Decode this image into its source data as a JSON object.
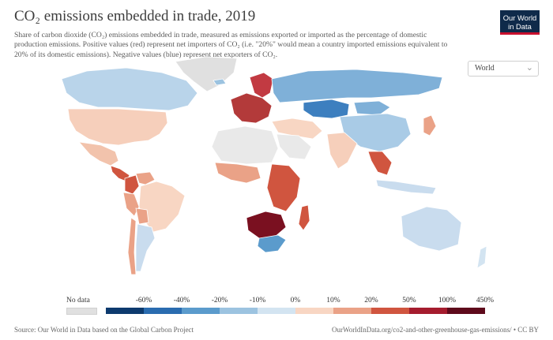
{
  "header": {
    "title": "CO₂ emissions embedded in trade, 2019",
    "subtitle": "Share of carbon dioxide (CO₂) emissions embedded in trade, measured as emissions exported or imported as the percentage of domestic production emissions. Positive values (red) represent net importers of CO₂ (i.e. \"20%\" would mean a country imported emissions equivalent to 20% of its domestic emissions). Negative values (blue) represent net exporters of CO₂.",
    "logo_line1": "Our World",
    "logo_line2": "in Data"
  },
  "region_selector": {
    "value": "World",
    "icon": "chevron-down-icon"
  },
  "legend": {
    "no_data_label": "No data",
    "no_data_color": "#e0e0e0",
    "ticks": [
      "-60%",
      "-40%",
      "-20%",
      "-10%",
      "0%",
      "10%",
      "20%",
      "50%",
      "100%",
      "450%"
    ],
    "colors": [
      "#0d3a6e",
      "#2a6cb0",
      "#5b9bcc",
      "#9cc3e0",
      "#d3e4f1",
      "#f8d6c3",
      "#eaa287",
      "#d0553f",
      "#a51c2e",
      "#5e0a1b"
    ]
  },
  "regions": [
    {
      "name": "Canada",
      "color": "#b9d4ea"
    },
    {
      "name": "United States",
      "color": "#f6cfbb"
    },
    {
      "name": "Mexico",
      "color": "#f2c3ac"
    },
    {
      "name": "Central America",
      "color": "#d0553f"
    },
    {
      "name": "Colombia",
      "color": "#d0553f"
    },
    {
      "name": "Venezuela",
      "color": "#eaa287"
    },
    {
      "name": "Brazil",
      "color": "#f8d6c3"
    },
    {
      "name": "Peru",
      "color": "#eaa287"
    },
    {
      "name": "Bolivia",
      "color": "#eaa287"
    },
    {
      "name": "Argentina",
      "color": "#c9dcee"
    },
    {
      "name": "Chile",
      "color": "#eaa287"
    },
    {
      "name": "Greenland",
      "color": "#e0e0e0"
    },
    {
      "name": "Iceland",
      "color": "#9cc3e0"
    },
    {
      "name": "Scandinavia",
      "color": "#c23a42"
    },
    {
      "name": "Western Europe",
      "color": "#b33a3a"
    },
    {
      "name": "Russia",
      "color": "#7fb0d8"
    },
    {
      "name": "Kazakhstan",
      "color": "#3d7fbf"
    },
    {
      "name": "Mongolia",
      "color": "#7fb0d8"
    },
    {
      "name": "China",
      "color": "#a9cbe6"
    },
    {
      "name": "India",
      "color": "#f6cfbb"
    },
    {
      "name": "Middle East",
      "color": "#f8d6c3"
    },
    {
      "name": "Saudi Arabia",
      "color": "#e9e9e9"
    },
    {
      "name": "Southeast Asia",
      "color": "#d0553f"
    },
    {
      "name": "Japan",
      "color": "#eaa287"
    },
    {
      "name": "Indonesia",
      "color": "#c9dcee"
    },
    {
      "name": "Australia",
      "color": "#c9dcee"
    },
    {
      "name": "North Africa",
      "color": "#e9e9e9"
    },
    {
      "name": "West Africa",
      "color": "#eaa287"
    },
    {
      "name": "East Africa",
      "color": "#d0553f"
    },
    {
      "name": "Southern Africa",
      "color": "#7a1020"
    },
    {
      "name": "South Africa",
      "color": "#5b9bcc"
    },
    {
      "name": "Madagascar",
      "color": "#d0553f"
    },
    {
      "name": "New Zealand",
      "color": "#d3e4f1"
    }
  ],
  "footer": {
    "source": "Source: Our World in Data based on the Global Carbon Project",
    "url": "OurWorldInData.org/co2-and-other-greenhouse-gas-emissions/ • CC BY"
  }
}
